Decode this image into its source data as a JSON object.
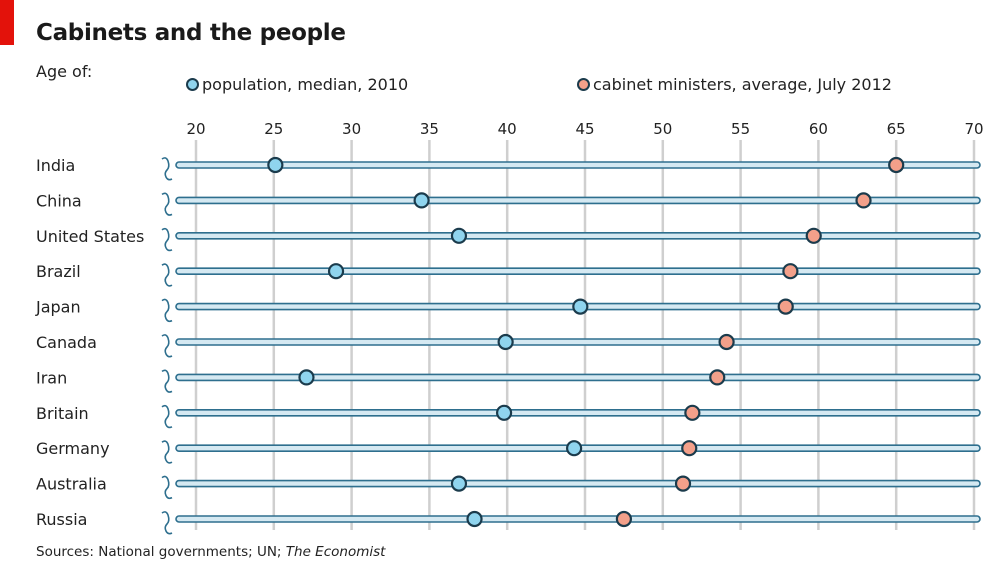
{
  "title": "Cabinets and the people",
  "subtitle": "Age of:",
  "source": {
    "prefix": "Sources: National governments; UN; ",
    "italic": "The Economist"
  },
  "colors": {
    "accent": "#e3120b",
    "population": "#8fd4ee",
    "ministers": "#f3a08a",
    "outline": "#1b3b4c",
    "gridline": "#cfcfcf",
    "barFill": "#d5e9f2",
    "barStroke": "#2e6f8e"
  },
  "chart_data": {
    "type": "scatter",
    "title": "Cabinets and the people",
    "subtitle": "Age of:",
    "xlim": [
      20,
      70
    ],
    "x_ticks": [
      20,
      25,
      30,
      35,
      40,
      45,
      50,
      55,
      60,
      65,
      70
    ],
    "grid": true,
    "legend_position": "top",
    "categories": [
      "India",
      "China",
      "United States",
      "Brazil",
      "Japan",
      "Canada",
      "Iran",
      "Britain",
      "Germany",
      "Australia",
      "Russia"
    ],
    "series": [
      {
        "name": "population, median, 2010",
        "color": "#8fd4ee",
        "values": [
          25.1,
          34.5,
          36.9,
          29.0,
          44.7,
          39.9,
          27.1,
          39.8,
          44.3,
          36.9,
          37.9
        ]
      },
      {
        "name": "cabinet ministers, average, July 2012",
        "color": "#f3a08a",
        "values": [
          65.0,
          62.9,
          59.7,
          58.2,
          57.9,
          54.1,
          53.5,
          51.9,
          51.7,
          51.3,
          47.5
        ]
      }
    ]
  }
}
